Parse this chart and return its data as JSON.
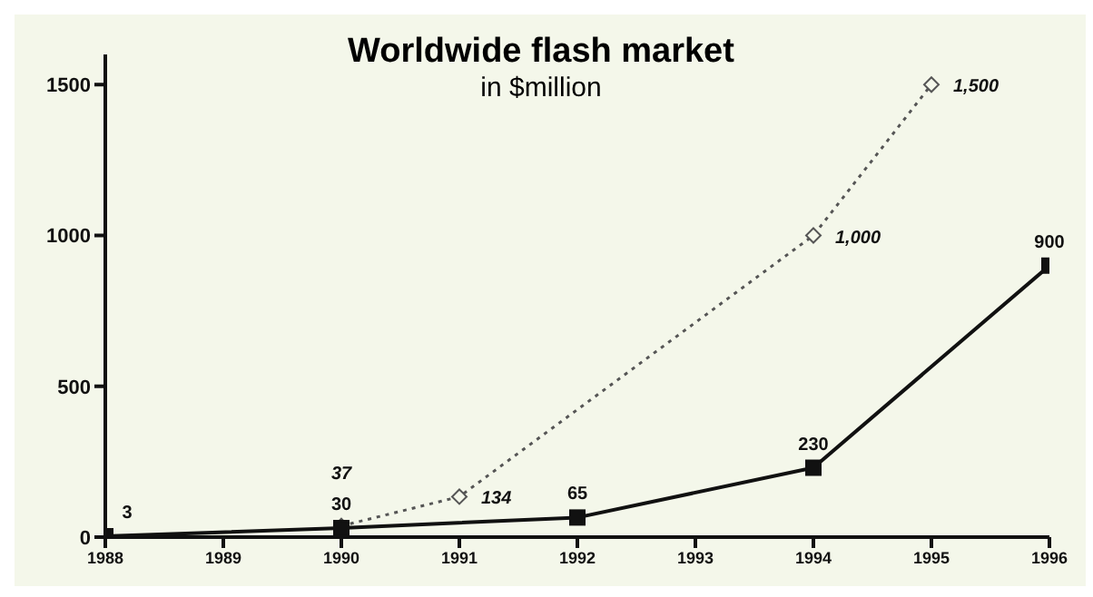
{
  "chart_data": {
    "type": "line",
    "title": "Worldwide flash market",
    "subtitle": "in $million",
    "xlim": [
      1988,
      1996
    ],
    "xticks": [
      1988,
      1989,
      1990,
      1991,
      1992,
      1993,
      1994,
      1995,
      1996
    ],
    "ylim": [
      0,
      1600
    ],
    "yticks": [
      0,
      500,
      1000,
      1500
    ],
    "grid": false,
    "legend": false,
    "series": [
      {
        "color": "#555555",
        "line_style": "dotted",
        "marker": "diamond",
        "x": [
          1990,
          1991,
          1994,
          1995
        ],
        "values": [
          37,
          134,
          1000,
          1500
        ],
        "value_labels": [
          "37",
          "134",
          "1,000",
          "1,500"
        ]
      },
      {
        "color": "#111111",
        "line_style": "solid",
        "marker": "square",
        "x": [
          1988,
          1990,
          1992,
          1994,
          1996
        ],
        "values": [
          3,
          30,
          65,
          230,
          900
        ],
        "value_labels": [
          "3",
          "30",
          "65",
          "230",
          "900"
        ]
      }
    ]
  }
}
